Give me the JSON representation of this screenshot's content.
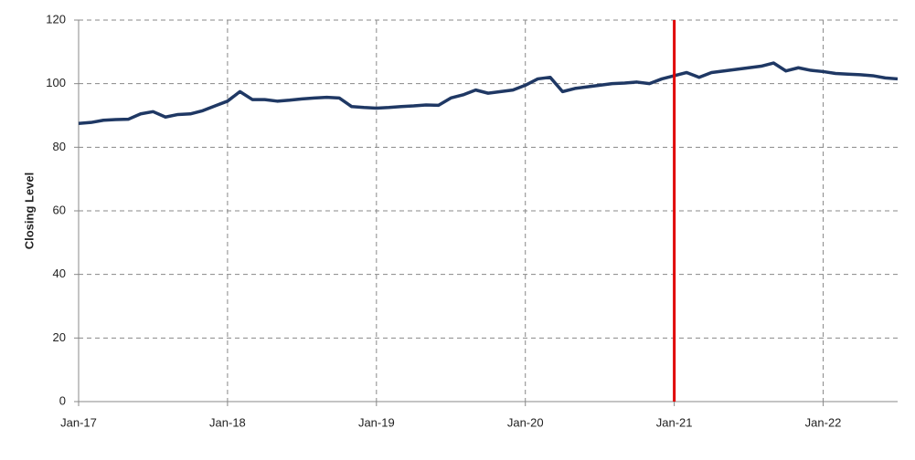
{
  "chart_data": {
    "type": "line",
    "y_label": "Closing Level",
    "x": [
      "2017-01",
      "2017-02",
      "2017-03",
      "2017-04",
      "2017-05",
      "2017-06",
      "2017-07",
      "2017-08",
      "2017-09",
      "2017-10",
      "2017-11",
      "2017-12",
      "2018-01",
      "2018-02",
      "2018-03",
      "2018-04",
      "2018-05",
      "2018-06",
      "2018-07",
      "2018-08",
      "2018-09",
      "2018-10",
      "2018-11",
      "2018-12",
      "2019-01",
      "2019-02",
      "2019-03",
      "2019-04",
      "2019-05",
      "2019-06",
      "2019-07",
      "2019-08",
      "2019-09",
      "2019-10",
      "2019-11",
      "2019-12",
      "2020-01",
      "2020-02",
      "2020-03",
      "2020-04",
      "2020-05",
      "2020-06",
      "2020-07",
      "2020-08",
      "2020-09",
      "2020-10",
      "2020-11",
      "2020-12",
      "2021-01",
      "2021-02",
      "2021-03",
      "2021-04",
      "2021-05",
      "2021-06",
      "2021-07",
      "2021-08",
      "2021-09",
      "2021-10",
      "2021-11",
      "2021-12",
      "2022-01",
      "2022-02",
      "2022-03",
      "2022-04",
      "2022-05",
      "2022-06",
      "2022-07"
    ],
    "series": [
      {
        "color": "#1f3864",
        "values": [
          87.5,
          87.8,
          88.5,
          88.7,
          88.8,
          90.5,
          91.2,
          89.5,
          90.3,
          90.5,
          91.5,
          93,
          94.5,
          97.5,
          95,
          95,
          94.5,
          94.8,
          95.2,
          95.5,
          95.7,
          95.5,
          92.8,
          92.5,
          92.3,
          92.5,
          92.8,
          93,
          93.3,
          93.2,
          95.5,
          96.5,
          98,
          97,
          97.5,
          98,
          99.5,
          101.5,
          102,
          97.5,
          98.5,
          99,
          99.5,
          100,
          100.2,
          100.5,
          100,
          101.5,
          102.5,
          103.5,
          102,
          103.5,
          104,
          104.5,
          105,
          105.5,
          106.5,
          104,
          105,
          104.2,
          103.8,
          103.2,
          103,
          102.8,
          102.5,
          101.8,
          101.5
        ]
      }
    ],
    "marker": {
      "x": "2021-01",
      "color": "#e00000"
    },
    "xlim": [
      "2017-01",
      "2022-07"
    ],
    "xticks": [
      {
        "value": "2017-01",
        "label": "Jan-17"
      },
      {
        "value": "2018-01",
        "label": "Jan-18"
      },
      {
        "value": "2019-01",
        "label": "Jan-19"
      },
      {
        "value": "2020-01",
        "label": "Jan-20"
      },
      {
        "value": "2021-01",
        "label": "Jan-21"
      },
      {
        "value": "2022-01",
        "label": "Jan-22"
      }
    ],
    "ylim": [
      0,
      120
    ],
    "yticks": [
      0,
      20,
      40,
      60,
      80,
      100,
      120
    ],
    "grid": true
  }
}
